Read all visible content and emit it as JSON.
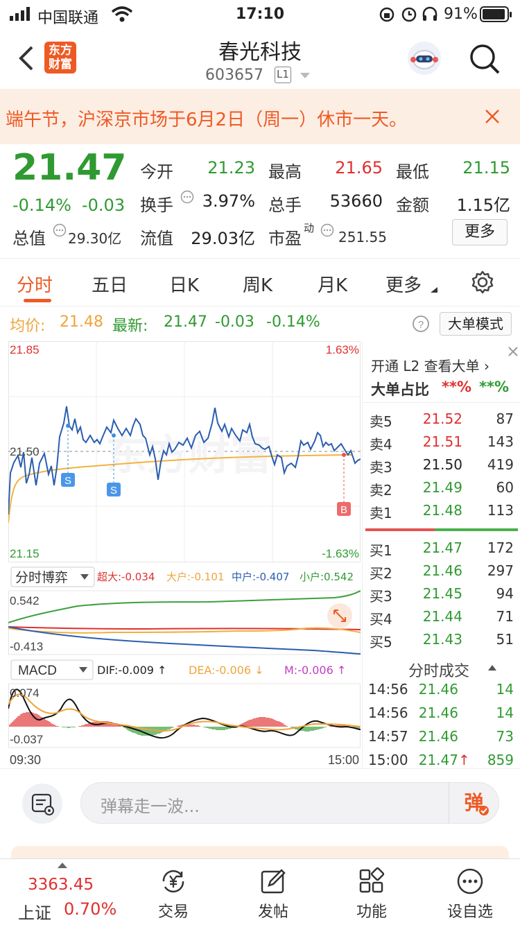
{
  "status_bar": {
    "carrier": "中国联通",
    "time": "17:10",
    "battery_pct": "91%"
  },
  "nav": {
    "title": "春光科技",
    "code": "603657",
    "level": "L1",
    "logo_line1": "东方",
    "logo_line2": "财富"
  },
  "banner": {
    "text": "端午节，沪深京市场于6月2日（周一）休市一天。"
  },
  "quote": {
    "price": "21.47",
    "pct": "-0.14%",
    "chg": "-0.03",
    "open_label": "今开",
    "open": "21.23",
    "high_label": "最高",
    "high": "21.65",
    "low_label": "最低",
    "low": "21.15",
    "turnover_label": "换手",
    "turnover": "3.97%",
    "vol_label": "总手",
    "vol": "53660",
    "amount_label": "金额",
    "amount": "1.15亿",
    "mktcap_label": "总值",
    "mktcap": "29.30亿",
    "float_label": "流值",
    "float": "29.03亿",
    "pe_label": "市盈",
    "pe_sup": "动",
    "pe": "251.55",
    "more_label": "更多"
  },
  "tabs": [
    "分时",
    "五日",
    "日K",
    "周K",
    "月K",
    "更多"
  ],
  "intraday_info": {
    "avg_label": "均价:",
    "avg": "21.48",
    "latest_label": "最新:",
    "latest": "21.47",
    "chg": "-0.03",
    "pct": "-0.14%",
    "mode_btn": "大单模式"
  },
  "chart_labels": {
    "y_top": "21.85",
    "y_mid": "21.50",
    "y_bot": "21.15",
    "pct_top": "1.63%",
    "pct_bot": "-1.63%",
    "watermark": "东方财富",
    "flow_select": "分时博弈",
    "flow_super": "超大:-0.034",
    "flow_big": "大户:-0.101",
    "flow_mid": "中户:-0.407",
    "flow_small": "小户:0.542",
    "flow_top": "0.542",
    "flow_bot": "-0.413",
    "macd_select": "MACD",
    "dif": "DIF:-0.009 ↑",
    "dea": "DEA:-0.006 ↓",
    "m": "M:-0.006 ↑",
    "macd_top": "0.074",
    "macd_bot": "-0.037",
    "t_start": "09:30",
    "t_end": "15:00",
    "marker_s": "S",
    "marker_b": "B"
  },
  "book": {
    "l2_link": "开通 L2 查看大单 ›",
    "big_ratio_label": "大单占比",
    "big_ratio_red": "**%",
    "big_ratio_green": "**%",
    "asks": [
      {
        "label": "卖5",
        "price": "21.52",
        "vol": "87",
        "color": "red"
      },
      {
        "label": "卖4",
        "price": "21.51",
        "vol": "143",
        "color": "red"
      },
      {
        "label": "卖3",
        "price": "21.50",
        "vol": "419",
        "color": "black"
      },
      {
        "label": "卖2",
        "price": "21.49",
        "vol": "60",
        "color": "green"
      },
      {
        "label": "卖1",
        "price": "21.48",
        "vol": "113",
        "color": "green"
      }
    ],
    "bids": [
      {
        "label": "买1",
        "price": "21.47",
        "vol": "172",
        "color": "green"
      },
      {
        "label": "买2",
        "price": "21.46",
        "vol": "297",
        "color": "green"
      },
      {
        "label": "买3",
        "price": "21.45",
        "vol": "94",
        "color": "green"
      },
      {
        "label": "买4",
        "price": "21.44",
        "vol": "71",
        "color": "green"
      },
      {
        "label": "买5",
        "price": "21.43",
        "vol": "51",
        "color": "green"
      }
    ],
    "ticks_title": "分时成交",
    "ticks": [
      {
        "time": "14:56",
        "price": "21.46",
        "vol": "14",
        "arrow": ""
      },
      {
        "time": "14:56",
        "price": "21.46",
        "vol": "14",
        "arrow": ""
      },
      {
        "time": "14:57",
        "price": "21.46",
        "vol": "73",
        "arrow": ""
      },
      {
        "time": "15:00",
        "price": "21.47",
        "vol": "859",
        "arrow": "↑"
      }
    ]
  },
  "comment": {
    "placeholder": "弹幕走一波...",
    "dan_btn": "弹"
  },
  "bottom": {
    "index_value": "3363.45",
    "index_name": "上证",
    "index_pct": "0.70%",
    "trade": "交易",
    "post": "发帖",
    "features": "功能",
    "custom": "设自选"
  }
}
